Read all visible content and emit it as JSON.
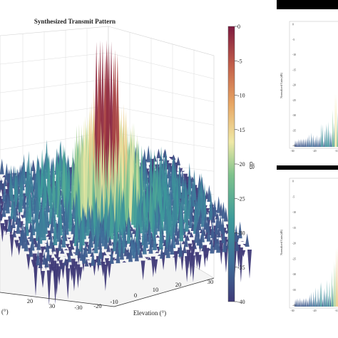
{
  "chart_data": [
    {
      "type": "surface",
      "title": "Synthesized Transmit Pattern",
      "xlabel": "Elevation (°)",
      "ylabel": "(°)",
      "x_ticks": [
        "-30",
        "-20",
        "-10",
        "0",
        "10",
        "20",
        "30"
      ],
      "y_ticks": [
        "20",
        "30"
      ],
      "colorbar": {
        "label": "dB",
        "ticks": [
          "0",
          "-5",
          "-10",
          "-15",
          "-20",
          "-25",
          "-30",
          "-35",
          "-40"
        ],
        "range": [
          -40,
          0
        ],
        "colormap": [
          "#3f3a78",
          "#3f6f9a",
          "#3c9a9a",
          "#7ec28c",
          "#efe9a6",
          "#e7a563",
          "#c15e4a",
          "#7e1a3f"
        ]
      },
      "peak_db": 0,
      "floor_db": -40,
      "grid": true
    },
    {
      "type": "line",
      "title": "",
      "xlabel": "",
      "ylabel": "Normalized Gain (dB)",
      "x_ticks": [
        "-30",
        "-20",
        "-10"
      ],
      "y_ticks": [
        "0",
        "-5",
        "-10",
        "-15",
        "-20",
        "-25",
        "-30",
        "-35",
        "-40"
      ],
      "ylim": [
        -40,
        0
      ]
    },
    {
      "type": "line",
      "title": "",
      "xlabel": "",
      "ylabel": "Normalized Gain (dB)",
      "x_ticks": [
        "-30",
        "-20",
        "-10"
      ],
      "y_ticks": [
        "0",
        "-5",
        "-10",
        "-15",
        "-20",
        "-25",
        "-30",
        "-35",
        "-40"
      ],
      "ylim": [
        -40,
        0
      ]
    }
  ]
}
